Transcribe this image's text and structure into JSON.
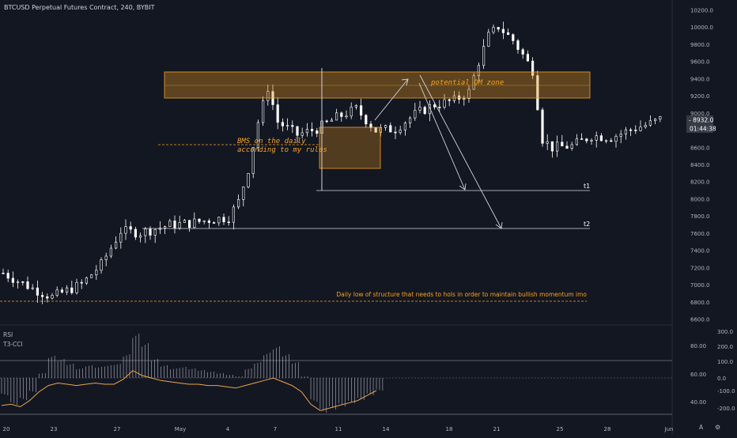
{
  "header": {
    "symbol_title": "BTCUSD Perpetual Futures Contract, 240, BYBIT"
  },
  "price_axis": {
    "ticks": [
      "10200.0",
      "10000.0",
      "9800.0",
      "9600.0",
      "9400.0",
      "9200.0",
      "9000.0",
      "8800.0",
      "8600.0",
      "8400.0",
      "8200.0",
      "8000.0",
      "7800.0",
      "7600.0",
      "7400.0",
      "7200.0",
      "7000.0",
      "6800.0",
      "6600.0"
    ],
    "last_price_label": "8932.0",
    "countdown_label": "01:44:38"
  },
  "time_axis": {
    "labels": [
      "20",
      "23",
      "27",
      "May",
      "4",
      "7",
      "11",
      "14",
      "18",
      "21",
      "25",
      "28",
      "Jun"
    ]
  },
  "annotations": {
    "qm_zone_label": "potential QM zone",
    "bms_line1": "BMS on the daily",
    "bms_line2": "according to my rules",
    "t1_label": "t1",
    "t2_label": "t2",
    "daily_low_label": "Daily low of structure that needs to hols in order to maintain bullish momentum imo"
  },
  "indicators": {
    "rsi_label": "RSI",
    "cci_label": "T3-CCI",
    "rsi_ticks": [
      "80.00",
      "60.00",
      "40.00"
    ],
    "cci_ticks": [
      "300.0",
      "200.0",
      "100.0",
      "0.0",
      "-100.0",
      "-200.0"
    ]
  },
  "footer": {
    "auto_label": "A",
    "log_label": "⚙"
  },
  "colors": {
    "background": "#131722",
    "candle": "#ffffff",
    "annotation_orange": "#f7a21b",
    "zone_fill": "rgba(216,140,28,0.38)",
    "axis_text": "#b2b5be",
    "rsi_line": "#e8a54b",
    "cci_hist": "#d1d4dc",
    "price_tag": "#363a45"
  },
  "chart_data": {
    "type": "candlestick",
    "title": "BTCUSD Perpetual Futures Contract, 240, BYBIT",
    "interval": "240",
    "ylim": [
      6580,
      10260
    ],
    "x_tick_labels": [
      "20",
      "23",
      "27",
      "May",
      "4",
      "7",
      "11",
      "14",
      "18",
      "21",
      "25",
      "28",
      "Jun"
    ],
    "close_path": [
      [
        0,
        7140
      ],
      [
        6,
        6960
      ],
      [
        10,
        6860
      ],
      [
        16,
        7010
      ],
      [
        20,
        7240
      ],
      [
        24,
        7630
      ],
      [
        28,
        7610
      ],
      [
        34,
        7700
      ],
      [
        38,
        7720
      ],
      [
        42,
        7760
      ],
      [
        46,
        7790
      ],
      [
        48,
        7970
      ],
      [
        50,
        8350
      ],
      [
        52,
        8900
      ],
      [
        54,
        9300
      ],
      [
        56,
        8900
      ],
      [
        60,
        8750
      ],
      [
        64,
        8820
      ],
      [
        68,
        8950
      ],
      [
        72,
        9050
      ],
      [
        76,
        8800
      ],
      [
        80,
        8820
      ],
      [
        84,
        8990
      ],
      [
        88,
        9100
      ],
      [
        92,
        9150
      ],
      [
        95,
        9250
      ],
      [
        97,
        9600
      ],
      [
        99,
        9900
      ],
      [
        101,
        10010
      ],
      [
        104,
        9850
      ],
      [
        106,
        9680
      ],
      [
        108,
        9500
      ],
      [
        110,
        8700
      ],
      [
        112,
        8600
      ],
      [
        116,
        8620
      ],
      [
        120,
        8740
      ],
      [
        124,
        8720
      ],
      [
        128,
        8810
      ],
      [
        132,
        8880
      ],
      [
        134,
        8932
      ]
    ],
    "current_price": 8932.0,
    "rsi_series": [
      44,
      45,
      43,
      48,
      55,
      60,
      62,
      61,
      60,
      61,
      62,
      61,
      61,
      65,
      72,
      68,
      66,
      64,
      63,
      62,
      61,
      61,
      60,
      60,
      59,
      58,
      60,
      62,
      64,
      66,
      63,
      60,
      55,
      45,
      40,
      42,
      44,
      46,
      48,
      52,
      56
    ],
    "cci_series": [
      -110,
      -170,
      -140,
      -90,
      30,
      140,
      120,
      90,
      60,
      80,
      70,
      80,
      90,
      150,
      280,
      220,
      120,
      80,
      60,
      70,
      60,
      50,
      40,
      30,
      20,
      10,
      60,
      100,
      160,
      200,
      150,
      100,
      10,
      -150,
      -220,
      -200,
      -180,
      -160,
      -140,
      -110,
      -80
    ],
    "zones": [
      {
        "label": "potential QM zone",
        "price_low": 9190,
        "price_high": 9480
      },
      {
        "label": "",
        "price_low": 8370,
        "price_high": 8830
      }
    ],
    "levels": [
      {
        "label": "t1",
        "price": 8100
      },
      {
        "label": "t2",
        "price": 7660
      },
      {
        "label": "Daily low of structure that needs to hols in order to maintain bullish momentum imo",
        "price": 6820
      },
      {
        "label": "BMS on the daily according to my rules",
        "price": 8660
      }
    ]
  }
}
